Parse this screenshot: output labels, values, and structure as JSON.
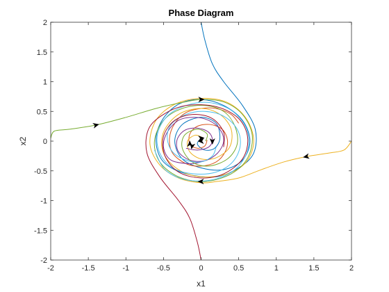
{
  "chart_data": {
    "type": "line",
    "title": "Phase Diagram",
    "xlabel": "x1",
    "ylabel": "x2",
    "xlim": [
      -2,
      2
    ],
    "ylim": [
      -2,
      2
    ],
    "grid": false,
    "legend": "none",
    "x_ticks": [
      {
        "value": -2,
        "label": "-2"
      },
      {
        "value": -1.5,
        "label": "-1.5"
      },
      {
        "value": -1,
        "label": "-1"
      },
      {
        "value": -0.5,
        "label": "-0.5"
      },
      {
        "value": 0,
        "label": "0"
      },
      {
        "value": 0.5,
        "label": "0.5"
      },
      {
        "value": 1,
        "label": "1"
      },
      {
        "value": 1.5,
        "label": "1.5"
      },
      {
        "value": 2,
        "label": "2"
      }
    ],
    "y_ticks": [
      {
        "value": -2,
        "label": "-2"
      },
      {
        "value": -1.5,
        "label": "-1.5"
      },
      {
        "value": -1,
        "label": "-1"
      },
      {
        "value": -0.5,
        "label": "-0.5"
      },
      {
        "value": 0,
        "label": "0"
      },
      {
        "value": 0.5,
        "label": "0.5"
      },
      {
        "value": 1,
        "label": "1"
      },
      {
        "value": 1.5,
        "label": "1.5"
      },
      {
        "value": 2,
        "label": "2"
      }
    ],
    "series": [
      {
        "color": "#0072BD",
        "points": [
          [
            0,
            2
          ],
          [
            0.05,
            1.7
          ],
          [
            0.15,
            1.3
          ],
          [
            0.3,
            1.0
          ],
          [
            0.55,
            0.6
          ],
          [
            0.72,
            0.2
          ],
          [
            0.7,
            -0.2
          ],
          [
            0.5,
            -0.45
          ],
          [
            0.2,
            -0.6
          ],
          [
            -0.2,
            -0.55
          ],
          [
            -0.5,
            -0.35
          ],
          [
            -0.6,
            0
          ],
          [
            -0.52,
            0.35
          ],
          [
            -0.3,
            0.62
          ],
          [
            0,
            0.7
          ],
          [
            0.3,
            0.6
          ],
          [
            0.55,
            0.35
          ],
          [
            0.65,
            0
          ],
          [
            0.55,
            -0.32
          ],
          [
            0.3,
            -0.48
          ],
          [
            0,
            -0.45
          ],
          [
            -0.25,
            -0.3
          ],
          [
            -0.35,
            0
          ],
          [
            -0.25,
            0.28
          ],
          [
            0,
            0.4
          ],
          [
            0.2,
            0.3
          ],
          [
            0.25,
            0.05
          ],
          [
            0.18,
            -0.12
          ],
          [
            0.05,
            -0.15
          ],
          [
            -0.05,
            -0.05
          ],
          [
            0,
            0.05
          ]
        ]
      },
      {
        "color": "#D95319",
        "points": [
          [
            0.5,
            0.3
          ],
          [
            0.4,
            0.45
          ],
          [
            0.2,
            0.55
          ],
          [
            0,
            0.55
          ],
          [
            -0.2,
            0.48
          ],
          [
            -0.35,
            0.3
          ],
          [
            -0.42,
            0.05
          ],
          [
            -0.38,
            -0.2
          ],
          [
            -0.2,
            -0.38
          ],
          [
            0,
            -0.42
          ],
          [
            0.2,
            -0.35
          ],
          [
            0.32,
            -0.18
          ],
          [
            0.35,
            0.02
          ],
          [
            0.28,
            0.2
          ],
          [
            0.12,
            0.28
          ],
          [
            -0.05,
            0.25
          ],
          [
            -0.15,
            0.12
          ],
          [
            -0.15,
            -0.05
          ],
          [
            -0.05,
            -0.12
          ],
          [
            0.05,
            -0.08
          ],
          [
            0.08,
            0.02
          ]
        ]
      },
      {
        "color": "#EDB120",
        "points": [
          [
            2,
            0
          ],
          [
            1.9,
            -0.15
          ],
          [
            1.7,
            -0.2
          ],
          [
            1.4,
            -0.26
          ],
          [
            1.1,
            -0.35
          ],
          [
            0.8,
            -0.48
          ],
          [
            0.5,
            -0.62
          ],
          [
            0.2,
            -0.68
          ],
          [
            0,
            -0.7
          ],
          [
            -0.3,
            -0.62
          ],
          [
            -0.55,
            -0.4
          ],
          [
            -0.68,
            -0.05
          ],
          [
            -0.6,
            0.35
          ],
          [
            -0.35,
            0.62
          ],
          [
            0,
            0.72
          ],
          [
            0.35,
            0.65
          ],
          [
            0.6,
            0.38
          ],
          [
            0.7,
            0
          ],
          [
            0.6,
            -0.35
          ],
          [
            0.35,
            -0.55
          ],
          [
            0,
            -0.6
          ],
          [
            -0.3,
            -0.48
          ],
          [
            -0.5,
            -0.2
          ],
          [
            -0.5,
            0.15
          ],
          [
            -0.3,
            0.45
          ],
          [
            0,
            0.55
          ],
          [
            0.25,
            0.45
          ],
          [
            0.4,
            0.2
          ],
          [
            0.38,
            -0.1
          ],
          [
            0.2,
            -0.28
          ],
          [
            0,
            -0.3
          ],
          [
            -0.15,
            -0.18
          ],
          [
            -0.18,
            0
          ],
          [
            -0.08,
            0.1
          ],
          [
            0.02,
            0.06
          ]
        ]
      },
      {
        "color": "#7E2F8E",
        "points": [
          [
            -0.2,
            -0.12
          ],
          [
            -0.05,
            -0.15
          ],
          [
            0.1,
            -0.1
          ],
          [
            0.15,
            0.02
          ],
          [
            0.1,
            0.15
          ],
          [
            -0.05,
            0.22
          ],
          [
            -0.22,
            0.18
          ],
          [
            -0.32,
            0.02
          ],
          [
            -0.3,
            -0.18
          ],
          [
            -0.15,
            -0.32
          ],
          [
            0.05,
            -0.33
          ],
          [
            0.22,
            -0.2
          ],
          [
            0.3,
            0
          ],
          [
            0.25,
            0.2
          ],
          [
            0.1,
            0.35
          ],
          [
            -0.1,
            0.4
          ],
          [
            -0.3,
            0.35
          ],
          [
            -0.45,
            0.15
          ],
          [
            -0.5,
            -0.1
          ],
          [
            -0.4,
            -0.32
          ],
          [
            -0.15,
            -0.38
          ],
          [
            0,
            -0.35
          ]
        ]
      },
      {
        "color": "#77AC30",
        "points": [
          [
            -2,
            0.05
          ],
          [
            -1.95,
            0.17
          ],
          [
            -1.75,
            0.2
          ],
          [
            -1.4,
            0.27
          ],
          [
            -1.0,
            0.4
          ],
          [
            -0.6,
            0.55
          ],
          [
            -0.25,
            0.65
          ],
          [
            0,
            0.7
          ],
          [
            0.3,
            0.66
          ],
          [
            0.55,
            0.45
          ],
          [
            0.68,
            0.1
          ],
          [
            0.62,
            -0.28
          ],
          [
            0.4,
            -0.55
          ],
          [
            0.05,
            -0.68
          ],
          [
            -0.3,
            -0.6
          ],
          [
            -0.55,
            -0.35
          ],
          [
            -0.62,
            0
          ],
          [
            -0.5,
            0.35
          ],
          [
            -0.25,
            0.55
          ],
          [
            0.05,
            0.6
          ],
          [
            0.3,
            0.5
          ],
          [
            0.45,
            0.25
          ],
          [
            0.48,
            -0.05
          ],
          [
            0.35,
            -0.3
          ],
          [
            0.1,
            -0.42
          ],
          [
            -0.12,
            -0.35
          ],
          [
            -0.25,
            -0.12
          ],
          [
            -0.22,
            0.1
          ],
          [
            -0.05,
            0.2
          ],
          [
            0.08,
            0.12
          ],
          [
            0.06,
            0
          ]
        ]
      },
      {
        "color": "#4DBEEE",
        "points": [
          [
            0.2,
            -0.1
          ],
          [
            0.15,
            -0.25
          ],
          [
            0,
            -0.35
          ],
          [
            -0.2,
            -0.32
          ],
          [
            -0.38,
            -0.18
          ],
          [
            -0.45,
            0.05
          ],
          [
            -0.4,
            0.28
          ],
          [
            -0.2,
            0.45
          ],
          [
            0.05,
            0.5
          ],
          [
            0.3,
            0.42
          ],
          [
            0.48,
            0.2
          ],
          [
            0.52,
            -0.08
          ],
          [
            0.42,
            -0.35
          ],
          [
            0.2,
            -0.52
          ],
          [
            -0.1,
            -0.55
          ],
          [
            -0.38,
            -0.45
          ],
          [
            -0.55,
            -0.2
          ],
          [
            -0.58,
            0.12
          ],
          [
            -0.45,
            0.42
          ],
          [
            -0.2,
            0.6
          ],
          [
            0.1,
            0.65
          ],
          [
            0.4,
            0.52
          ],
          [
            0.6,
            0.22
          ],
          [
            0.62,
            -0.15
          ],
          [
            0.45,
            -0.48
          ],
          [
            0.15,
            -0.65
          ],
          [
            -0.2,
            -0.65
          ],
          [
            -0.48,
            -0.48
          ],
          [
            -0.62,
            -0.15
          ]
        ]
      },
      {
        "color": "#A2142F",
        "points": [
          [
            0,
            -2
          ],
          [
            -0.05,
            -1.7
          ],
          [
            -0.15,
            -1.3
          ],
          [
            -0.3,
            -1.0
          ],
          [
            -0.55,
            -0.6
          ],
          [
            -0.72,
            -0.2
          ],
          [
            -0.7,
            0.2
          ],
          [
            -0.5,
            0.45
          ],
          [
            -0.2,
            0.6
          ],
          [
            0.2,
            0.58
          ],
          [
            0.5,
            0.38
          ],
          [
            0.62,
            0.05
          ],
          [
            0.55,
            -0.3
          ],
          [
            0.3,
            -0.55
          ],
          [
            0,
            -0.62
          ],
          [
            -0.3,
            -0.52
          ],
          [
            -0.48,
            -0.25
          ],
          [
            -0.5,
            0.08
          ],
          [
            -0.35,
            0.35
          ],
          [
            -0.1,
            0.45
          ],
          [
            0.15,
            0.38
          ],
          [
            0.3,
            0.15
          ],
          [
            0.3,
            -0.1
          ]
        ]
      }
    ],
    "arrows": [
      {
        "point": [
          -1.4,
          0.27
        ],
        "dir": [
          1,
          0.25
        ]
      },
      {
        "point": [
          0.0,
          0.7
        ],
        "dir": [
          1,
          0
        ]
      },
      {
        "point": [
          1.4,
          -0.26
        ],
        "dir": [
          -1,
          -0.2
        ]
      },
      {
        "point": [
          0.0,
          -0.68
        ],
        "dir": [
          -1,
          0
        ]
      },
      {
        "point": [
          -0.15,
          -0.05
        ],
        "dir": [
          0,
          1
        ]
      },
      {
        "point": [
          0.0,
          0.05
        ],
        "dir": [
          1,
          0.1
        ]
      },
      {
        "point": [
          0.15,
          0.0
        ],
        "dir": [
          0,
          -1
        ]
      },
      {
        "point": [
          -0.12,
          -0.08
        ],
        "dir": [
          -0.2,
          -1
        ]
      },
      {
        "point": [
          0.0,
          0.0
        ],
        "dir": [
          -1,
          0
        ]
      }
    ]
  }
}
